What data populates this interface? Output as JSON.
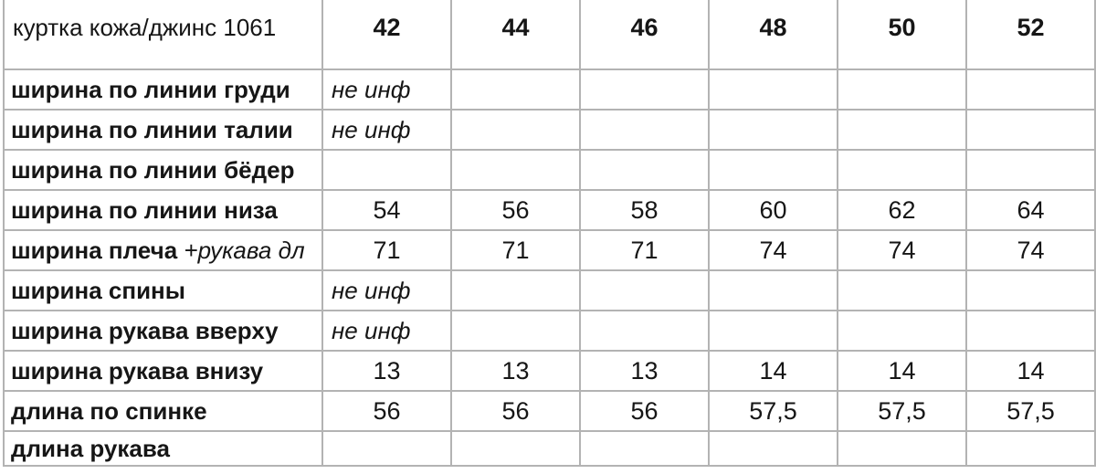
{
  "table": {
    "title_cell": "куртка кожа/джинс 1061",
    "size_headers": [
      "42",
      "44",
      "46",
      "48",
      "50",
      "52"
    ],
    "noinf_text": "не инф",
    "rows": [
      {
        "label": "ширина по линии груди",
        "label_note": "",
        "values": [
          "не инф",
          "",
          "",
          "",
          "",
          ""
        ]
      },
      {
        "label": "ширина по линии талии",
        "label_note": "",
        "values": [
          "не инф",
          "",
          "",
          "",
          "",
          ""
        ]
      },
      {
        "label": "ширина по линии бёдер",
        "label_note": "",
        "values": [
          "",
          "",
          "",
          "",
          "",
          ""
        ]
      },
      {
        "label": "ширина по линии низа",
        "label_note": "",
        "values": [
          "54",
          "56",
          "58",
          "60",
          "62",
          "64"
        ]
      },
      {
        "label": "ширина плеча",
        "label_note": "+рукава дл",
        "values": [
          "71",
          "71",
          "71",
          "74",
          "74",
          "74"
        ]
      },
      {
        "label": "ширина спины",
        "label_note": "",
        "values": [
          "не инф",
          "",
          "",
          "",
          "",
          ""
        ]
      },
      {
        "label": "ширина рукава вверху",
        "label_note": "",
        "values": [
          "не инф",
          "",
          "",
          "",
          "",
          ""
        ]
      },
      {
        "label": "ширина рукава внизу",
        "label_note": "",
        "values": [
          "13",
          "13",
          "13",
          "14",
          "14",
          "14"
        ]
      },
      {
        "label": "длина по спинке",
        "label_note": "",
        "values": [
          "56",
          "56",
          "56",
          "57,5",
          "57,5",
          "57,5"
        ]
      },
      {
        "label": "длина рукава",
        "label_note": "",
        "values": [
          "",
          "",
          "",
          "",
          "",
          ""
        ]
      }
    ],
    "colors": {
      "gridline": "#b3b3b3",
      "text": "#161616",
      "background": "#ffffff"
    }
  }
}
